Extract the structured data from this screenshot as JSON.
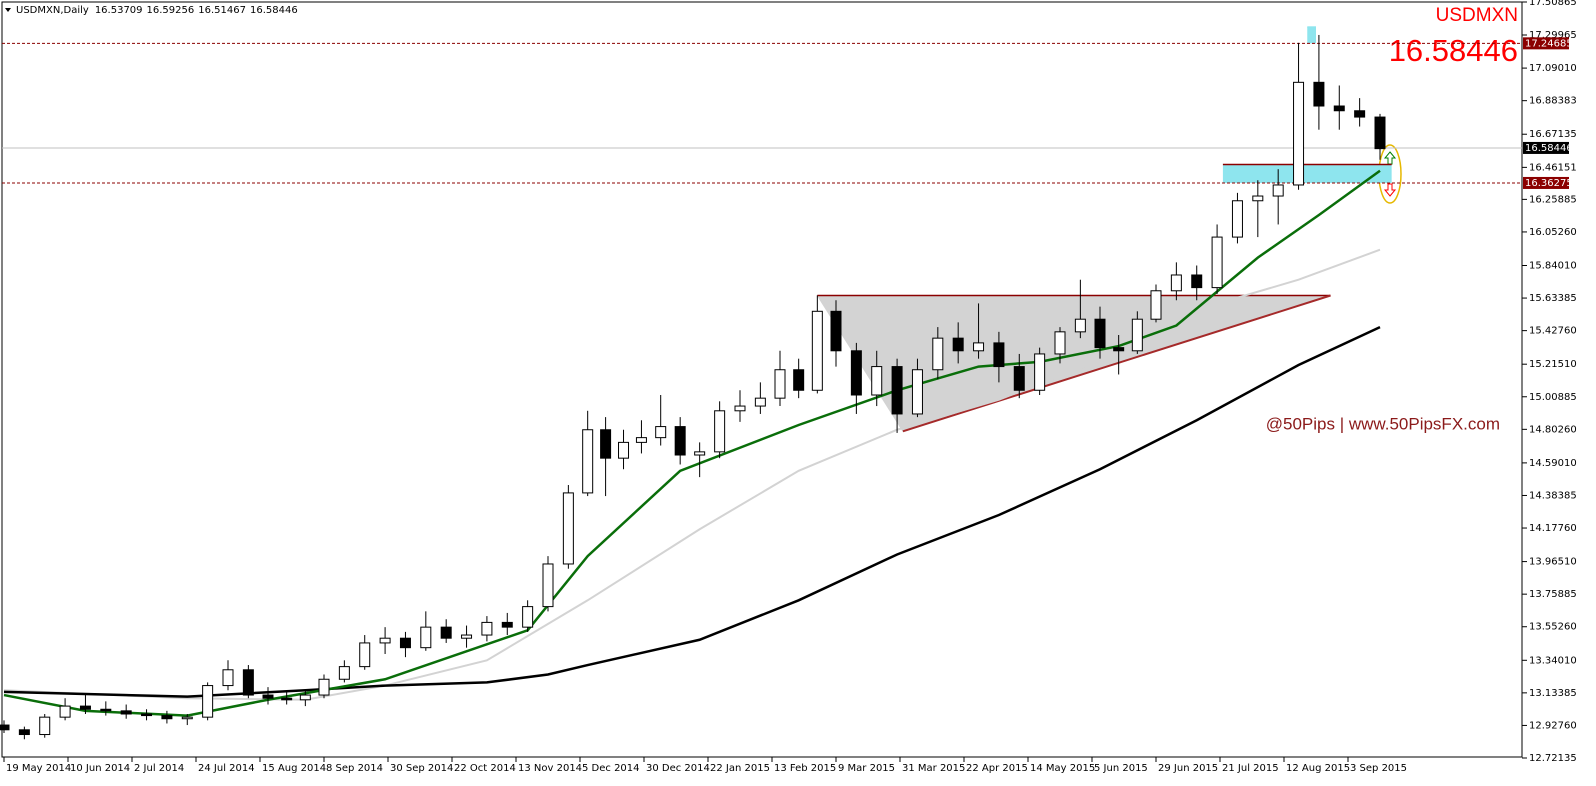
{
  "header": {
    "symbol": "USDMXN,Daily",
    "ohlc": [
      16.53709,
      16.59256,
      16.51467,
      16.58446
    ]
  },
  "chart_data": {
    "type": "candlestick",
    "symbol_label": "USDMXN",
    "price_label": 16.58446,
    "watermark": "@50Pips | www.50PipsFX.com",
    "x": [
      "2014-05-19",
      "2014-05-26",
      "2014-06-02",
      "2014-06-09",
      "2014-06-16",
      "2014-06-23",
      "2014-06-30",
      "2014-07-07",
      "2014-07-14",
      "2014-07-21",
      "2014-07-28",
      "2014-08-04",
      "2014-08-11",
      "2014-08-18",
      "2014-08-25",
      "2014-09-01",
      "2014-09-08",
      "2014-09-15",
      "2014-09-22",
      "2014-09-29",
      "2014-10-06",
      "2014-10-13",
      "2014-10-20",
      "2014-10-27",
      "2014-11-03",
      "2014-11-10",
      "2014-11-17",
      "2014-11-24",
      "2014-12-01",
      "2014-12-08",
      "2014-12-15",
      "2014-12-22",
      "2014-12-29",
      "2015-01-05",
      "2015-01-12",
      "2015-01-19",
      "2015-01-26",
      "2015-02-02",
      "2015-02-09",
      "2015-02-16",
      "2015-02-23",
      "2015-03-02",
      "2015-03-09",
      "2015-03-16",
      "2015-03-23",
      "2015-03-30",
      "2015-04-06",
      "2015-04-13",
      "2015-04-20",
      "2015-04-27",
      "2015-05-04",
      "2015-05-11",
      "2015-05-18",
      "2015-05-25",
      "2015-06-01",
      "2015-06-08",
      "2015-06-15",
      "2015-06-22",
      "2015-06-29",
      "2015-07-06",
      "2015-07-13",
      "2015-07-20",
      "2015-07-27",
      "2015-08-03",
      "2015-08-10",
      "2015-08-17",
      "2015-08-24",
      "2015-08-31",
      "2015-09-07",
      "2015-09-14"
    ],
    "open": [
      12.93,
      12.9,
      12.87,
      12.98,
      13.05,
      13.03,
      13.02,
      13.0,
      12.99,
      12.97,
      12.98,
      13.18,
      13.28,
      13.12,
      13.1,
      13.09,
      13.12,
      13.22,
      13.3,
      13.45,
      13.48,
      13.42,
      13.55,
      13.48,
      13.5,
      13.58,
      13.55,
      13.68,
      13.95,
      14.4,
      14.8,
      14.62,
      14.72,
      14.75,
      14.82,
      14.64,
      14.66,
      14.92,
      14.95,
      15.0,
      15.18,
      15.05,
      15.55,
      15.3,
      15.02,
      15.2,
      14.9,
      15.18,
      15.38,
      15.3,
      15.35,
      15.2,
      15.05,
      15.28,
      15.42,
      15.5,
      15.32,
      15.3,
      15.5,
      15.68,
      15.78,
      15.7,
      16.02,
      16.25,
      16.28,
      16.35,
      17.0,
      16.85,
      16.82,
      16.78
    ],
    "high": [
      12.96,
      12.92,
      13.0,
      13.1,
      13.12,
      13.08,
      13.06,
      13.03,
      13.02,
      13.0,
      13.2,
      13.34,
      13.31,
      13.17,
      13.14,
      13.15,
      13.25,
      13.34,
      13.5,
      13.55,
      13.52,
      13.65,
      13.6,
      13.56,
      13.62,
      13.64,
      13.72,
      14.0,
      14.45,
      14.92,
      14.88,
      14.8,
      14.86,
      15.02,
      14.88,
      14.72,
      14.98,
      15.05,
      15.1,
      15.3,
      15.25,
      15.65,
      15.62,
      15.35,
      15.3,
      15.25,
      15.25,
      15.45,
      15.48,
      15.6,
      15.42,
      15.28,
      15.32,
      15.45,
      15.75,
      15.58,
      15.4,
      15.55,
      15.72,
      15.86,
      15.84,
      16.1,
      16.3,
      16.38,
      16.45,
      17.25,
      17.3,
      16.98,
      16.9,
      16.8
    ],
    "low": [
      12.88,
      12.84,
      12.85,
      12.96,
      13.0,
      12.99,
      12.97,
      12.96,
      12.94,
      12.93,
      12.96,
      13.15,
      13.1,
      13.06,
      13.06,
      13.05,
      13.1,
      13.2,
      13.28,
      13.38,
      13.36,
      13.4,
      13.45,
      13.42,
      13.46,
      13.5,
      13.52,
      13.65,
      13.92,
      14.38,
      14.38,
      14.55,
      14.65,
      14.7,
      14.58,
      14.5,
      14.62,
      14.85,
      14.9,
      14.95,
      15.0,
      15.03,
      15.2,
      14.9,
      14.95,
      14.78,
      14.88,
      15.12,
      15.22,
      15.25,
      15.1,
      15.0,
      15.02,
      15.22,
      15.38,
      15.25,
      15.15,
      15.28,
      15.48,
      15.62,
      15.62,
      15.66,
      15.98,
      16.02,
      16.1,
      16.32,
      16.7,
      16.7,
      16.72,
      16.51
    ],
    "close": [
      12.9,
      12.87,
      12.98,
      13.05,
      13.03,
      13.02,
      13.0,
      12.99,
      12.97,
      12.98,
      13.18,
      13.28,
      13.12,
      13.1,
      13.09,
      13.12,
      13.22,
      13.3,
      13.45,
      13.48,
      13.42,
      13.55,
      13.48,
      13.5,
      13.58,
      13.55,
      13.68,
      13.95,
      14.4,
      14.8,
      14.62,
      14.72,
      14.75,
      14.82,
      14.64,
      14.66,
      14.92,
      14.95,
      15.0,
      15.18,
      15.05,
      15.55,
      15.3,
      15.02,
      15.2,
      14.9,
      15.18,
      15.38,
      15.3,
      15.35,
      15.2,
      15.05,
      15.28,
      15.42,
      15.5,
      15.32,
      15.3,
      15.5,
      15.68,
      15.78,
      15.7,
      16.02,
      16.25,
      16.28,
      16.35,
      17.0,
      16.85,
      16.82,
      16.78,
      16.58
    ],
    "up_color": "#ffffff",
    "down_color": "#000000",
    "ylim": [
      12.72135,
      17.50865
    ],
    "yticks": [
      17.50865,
      17.29965,
      {
        "value": 17.0901,
        "label": "17.09010"
      },
      16.88383,
      16.67135,
      16.46151,
      16.25885,
      {
        "value": 16.0526,
        "label": "16.05260"
      },
      {
        "value": 15.8401,
        "label": "15.84010"
      },
      15.63385,
      {
        "value": 15.4276,
        "label": "15.42760"
      },
      {
        "value": 15.2151,
        "label": "15.21510"
      },
      15.00885,
      {
        "value": 14.8026,
        "label": "14.80260"
      },
      {
        "value": 14.5901,
        "label": "14.59010"
      },
      14.38385,
      {
        "value": 14.1776,
        "label": "14.17760"
      },
      {
        "value": 13.9651,
        "label": "13.96510"
      },
      13.75885,
      {
        "value": 13.5526,
        "label": "13.55260"
      },
      {
        "value": 13.3401,
        "label": "13.34010"
      },
      13.13385,
      {
        "value": 12.9276,
        "label": "12.92760"
      },
      12.72135
    ],
    "xticks": [
      {
        "value": "2014-05-19",
        "label": "19 May 2014"
      },
      {
        "value": "2014-06-10",
        "label": "10 Jun 2014"
      },
      {
        "value": "2014-07-02",
        "label": "2 Jul 2014"
      },
      {
        "value": "2014-07-24",
        "label": "24 Jul 2014"
      },
      {
        "value": "2014-08-15",
        "label": "15 Aug 2014"
      },
      {
        "value": "2014-09-08",
        "label": "8 Sep 2014"
      },
      {
        "value": "2014-09-30",
        "label": "30 Sep 2014"
      },
      {
        "value": "2014-10-22",
        "label": "22 Oct 2014"
      },
      {
        "value": "2014-11-13",
        "label": "13 Nov 2014"
      },
      {
        "value": "2014-12-05",
        "label": "5 Dec 2014"
      },
      {
        "value": "2014-12-30",
        "label": "30 Dec 2014"
      },
      {
        "value": "2015-01-22",
        "label": "22 Jan 2015"
      },
      {
        "value": "2015-02-13",
        "label": "13 Feb 2015"
      },
      {
        "value": "2015-03-09",
        "label": "9 Mar 2015"
      },
      {
        "value": "2015-03-31",
        "label": "31 Mar 2015"
      },
      {
        "value": "2015-04-22",
        "label": "22 Apr 2015"
      },
      {
        "value": "2015-05-14",
        "label": "14 May 2015"
      },
      {
        "value": "2015-06-05",
        "label": "5 Jun 2015"
      },
      {
        "value": "2015-06-29",
        "label": "29 Jun 2015"
      },
      {
        "value": "2015-07-21",
        "label": "21 Jul 2015"
      },
      {
        "value": "2015-08-12",
        "label": "12 Aug 2015"
      },
      {
        "value": "2015-09-03",
        "label": "3 Sep 2015"
      }
    ],
    "moving_averages": [
      {
        "color": "#d3d3d3",
        "x": [
          "2014-05-19",
          "2014-07-21",
          "2014-09-01",
          "2014-09-29",
          "2014-11-03",
          "2014-12-08",
          "2015-01-19",
          "2015-02-23",
          "2015-03-30",
          "2015-05-04",
          "2015-06-08",
          "2015-07-13",
          "2015-08-17",
          "2015-09-14"
        ],
        "values": [
          13.15,
          13.1,
          13.09,
          13.18,
          13.34,
          13.72,
          14.17,
          14.54,
          14.8,
          14.99,
          15.24,
          15.56,
          15.75,
          15.94
        ]
      },
      {
        "color": "#000000",
        "x": [
          "2014-05-19",
          "2014-07-21",
          "2014-09-01",
          "2014-09-29",
          "2014-11-03",
          "2014-11-24",
          "2014-12-08",
          "2015-01-19",
          "2015-02-23",
          "2015-03-30",
          "2015-05-04",
          "2015-06-08",
          "2015-07-13",
          "2015-08-17",
          "2015-09-14"
        ],
        "values": [
          13.14,
          13.11,
          13.15,
          13.18,
          13.2,
          13.25,
          13.31,
          13.47,
          13.72,
          14.01,
          14.26,
          14.55,
          14.86,
          15.21,
          15.45
        ]
      },
      {
        "color": "#0a6e0a",
        "x": [
          "2014-05-19",
          "2014-06-16",
          "2014-07-21",
          "2014-08-18",
          "2014-09-29",
          "2014-11-17",
          "2014-12-08",
          "2015-01-12",
          "2015-02-23",
          "2015-03-30",
          "2015-04-27",
          "2015-05-18",
          "2015-06-15",
          "2015-07-06",
          "2015-08-03",
          "2015-08-24",
          "2015-09-14"
        ],
        "values": [
          13.12,
          13.02,
          12.99,
          13.09,
          13.22,
          13.53,
          14.0,
          14.54,
          14.83,
          15.05,
          15.2,
          15.23,
          15.33,
          15.46,
          15.89,
          16.16,
          16.44
        ]
      }
    ],
    "levels": [
      {
        "value": 17.24685,
        "color": "#8b0000",
        "dash": true
      },
      {
        "value": 16.58446,
        "color": "#c0c0c0",
        "dash": false,
        "label_bg": "#000000"
      },
      {
        "value": 16.36275,
        "color": "#8b0000",
        "dash": true
      }
    ],
    "triangle": {
      "x": [
        "2015-03-02",
        "2015-08-28",
        "2015-04-01"
      ],
      "y": [
        15.65,
        15.65,
        14.79
      ],
      "fill": "#d3d3d3",
      "top_color": "#8b0000",
      "bottom_color": "#a52a2a"
    },
    "zones": [
      {
        "x": [
          "2015-07-22",
          "2015-09-18"
        ],
        "y": [
          16.36275,
          16.48
        ],
        "color": "#8ee5ee",
        "border": "#8b0000"
      },
      {
        "x": [
          "2015-08-20",
          "2015-08-23"
        ],
        "y": [
          17.24685,
          17.35
        ],
        "color": "#8ee5ee",
        "border": "#8ee5ee"
      }
    ]
  }
}
